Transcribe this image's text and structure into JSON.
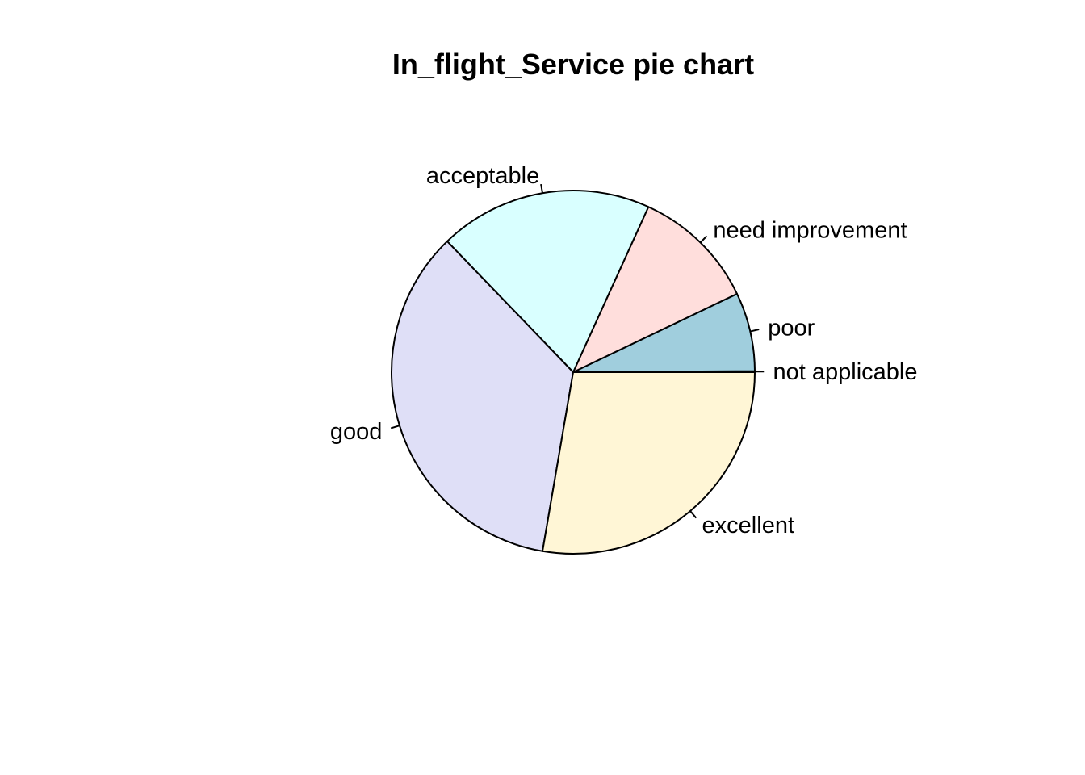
{
  "chart_data": {
    "type": "pie",
    "title": "In_flight_Service pie chart",
    "categories": [
      "not applicable",
      "poor",
      "need improvement",
      "acceptable",
      "good",
      "excellent"
    ],
    "values": [
      0.1,
      7.0,
      11.1,
      19.0,
      35.1,
      27.7
    ],
    "colors": [
      "#F0F0F0",
      "#A0CEDD",
      "#FFDEDC",
      "#D9FFFF",
      "#DFDFF7",
      "#FFF6D6"
    ],
    "direction": "counter-clockwise",
    "start": "3 o'clock"
  }
}
